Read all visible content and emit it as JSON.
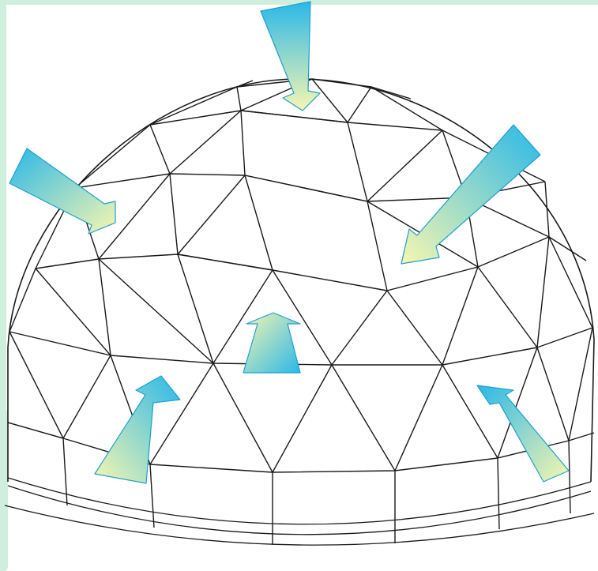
{
  "colors": {
    "background": "#ffffff",
    "frame_tint": "#cfeedd",
    "outline": "#1a1a1a",
    "arrow_cyan": "#2ab8e8",
    "arrow_yellow": "#f7f6b0",
    "arrow_edge": "#1f9fd0"
  },
  "diagram": {
    "subject": "geodesic-dome",
    "arrows": [
      {
        "id": "top",
        "direction": "inward-down"
      },
      {
        "id": "upper-left",
        "direction": "inward"
      },
      {
        "id": "upper-right",
        "direction": "inward"
      },
      {
        "id": "center",
        "direction": "outward-up"
      },
      {
        "id": "lower-left",
        "direction": "outward-up"
      },
      {
        "id": "lower-right",
        "direction": "outward-up"
      }
    ]
  }
}
